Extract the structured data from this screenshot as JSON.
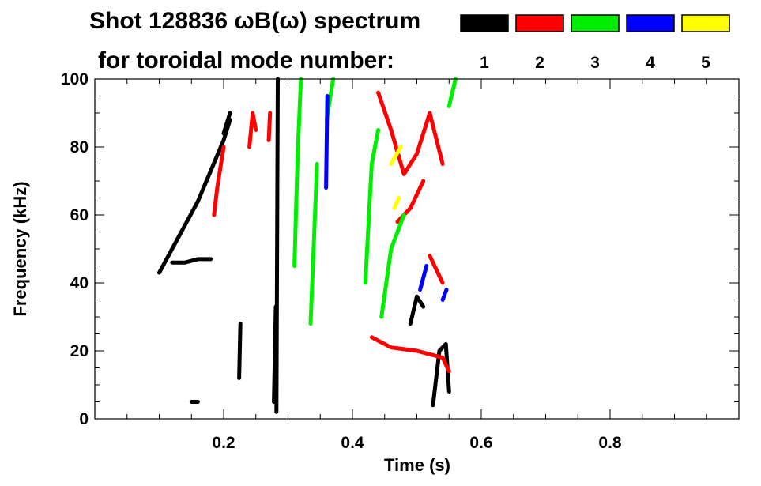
{
  "chart_data": {
    "type": "heatmap",
    "title_line1": "Shot 128836 ωB(ω) spectrum",
    "title_line2": "for toroidal mode number:",
    "xlabel": "Time (s)",
    "ylabel": "Frequency (kHz)",
    "xlim": [
      0.0,
      1.0
    ],
    "ylim": [
      0,
      100
    ],
    "x_ticks": [
      0.2,
      0.4,
      0.6,
      0.8
    ],
    "x_tick_labels": [
      "0.2",
      "0.4",
      "0.6",
      "0.8"
    ],
    "y_ticks": [
      0,
      20,
      40,
      60,
      80,
      100
    ],
    "y_tick_labels": [
      "0",
      "20",
      "40",
      "60",
      "80",
      "100"
    ],
    "legend": {
      "placement": "top-right",
      "entries": [
        {
          "label": "1",
          "color": "#000000"
        },
        {
          "label": "2",
          "color": "#ff0000"
        },
        {
          "label": "3",
          "color": "#00ee00"
        },
        {
          "label": "4",
          "color": "#0000ff"
        },
        {
          "label": "5",
          "color": "#ffff00"
        }
      ]
    },
    "series": [
      {
        "mode": "1",
        "color": "#000000",
        "segments": [
          {
            "t": [
              0.1,
              0.12,
              0.14,
              0.16,
              0.18,
              0.2,
              0.21
            ],
            "f": [
              43,
              50,
              57,
              64,
              73,
              82,
              88
            ]
          },
          {
            "t": [
              0.12,
              0.14,
              0.16,
              0.18
            ],
            "f": [
              46,
              46,
              47,
              47
            ]
          },
          {
            "t": [
              0.2,
              0.21
            ],
            "f": [
              84,
              90
            ]
          },
          {
            "t": [
              0.224,
              0.226
            ],
            "f": [
              12,
              28
            ]
          },
          {
            "t": [
              0.278,
              0.281
            ],
            "f": [
              5,
              33
            ]
          },
          {
            "t": [
              0.282,
              0.284
            ],
            "f": [
              2,
              100
            ]
          },
          {
            "t": [
              0.49,
              0.5,
              0.51
            ],
            "f": [
              28,
              36,
              33
            ]
          },
          {
            "t": [
              0.525,
              0.535,
              0.545,
              0.55
            ],
            "f": [
              4,
              20,
              22,
              8
            ]
          },
          {
            "t": [
              0.15,
              0.16
            ],
            "f": [
              5,
              5
            ]
          }
        ]
      },
      {
        "mode": "2",
        "color": "#ff0000",
        "segments": [
          {
            "t": [
              0.185,
              0.19,
              0.2
            ],
            "f": [
              60,
              68,
              80
            ]
          },
          {
            "t": [
              0.24,
              0.245,
              0.25
            ],
            "f": [
              80,
              90,
              85
            ]
          },
          {
            "t": [
              0.27,
              0.272
            ],
            "f": [
              82,
              90
            ]
          },
          {
            "t": [
              0.43,
              0.46,
              0.5,
              0.54,
              0.55
            ],
            "f": [
              24,
              21,
              20,
              18,
              14
            ]
          },
          {
            "t": [
              0.44,
              0.46,
              0.48,
              0.5,
              0.52,
              0.54
            ],
            "f": [
              96,
              85,
              72,
              78,
              90,
              75
            ]
          },
          {
            "t": [
              0.47,
              0.49,
              0.51
            ],
            "f": [
              58,
              62,
              70
            ]
          },
          {
            "t": [
              0.52,
              0.54
            ],
            "f": [
              48,
              40
            ]
          }
        ]
      },
      {
        "mode": "3",
        "color": "#00ee00",
        "segments": [
          {
            "t": [
              0.31,
              0.315,
              0.32
            ],
            "f": [
              45,
              78,
              100
            ]
          },
          {
            "t": [
              0.335,
              0.345
            ],
            "f": [
              28,
              75
            ]
          },
          {
            "t": [
              0.36,
              0.37
            ],
            "f": [
              88,
              100
            ]
          },
          {
            "t": [
              0.42,
              0.43,
              0.44
            ],
            "f": [
              40,
              75,
              85
            ]
          },
          {
            "t": [
              0.445,
              0.46,
              0.48
            ],
            "f": [
              30,
              50,
              60
            ]
          },
          {
            "t": [
              0.55,
              0.56
            ],
            "f": [
              92,
              100
            ]
          }
        ]
      },
      {
        "mode": "4",
        "color": "#0000ff",
        "segments": [
          {
            "t": [
              0.359,
              0.361
            ],
            "f": [
              68,
              95
            ]
          },
          {
            "t": [
              0.505,
              0.515
            ],
            "f": [
              38,
              45
            ]
          },
          {
            "t": [
              0.54,
              0.546
            ],
            "f": [
              35,
              38
            ]
          }
        ]
      },
      {
        "mode": "5",
        "color": "#ffff00",
        "segments": [
          {
            "t": [
              0.46,
              0.475
            ],
            "f": [
              75,
              80
            ]
          },
          {
            "t": [
              0.465,
              0.472
            ],
            "f": [
              62,
              65
            ]
          }
        ]
      }
    ]
  }
}
